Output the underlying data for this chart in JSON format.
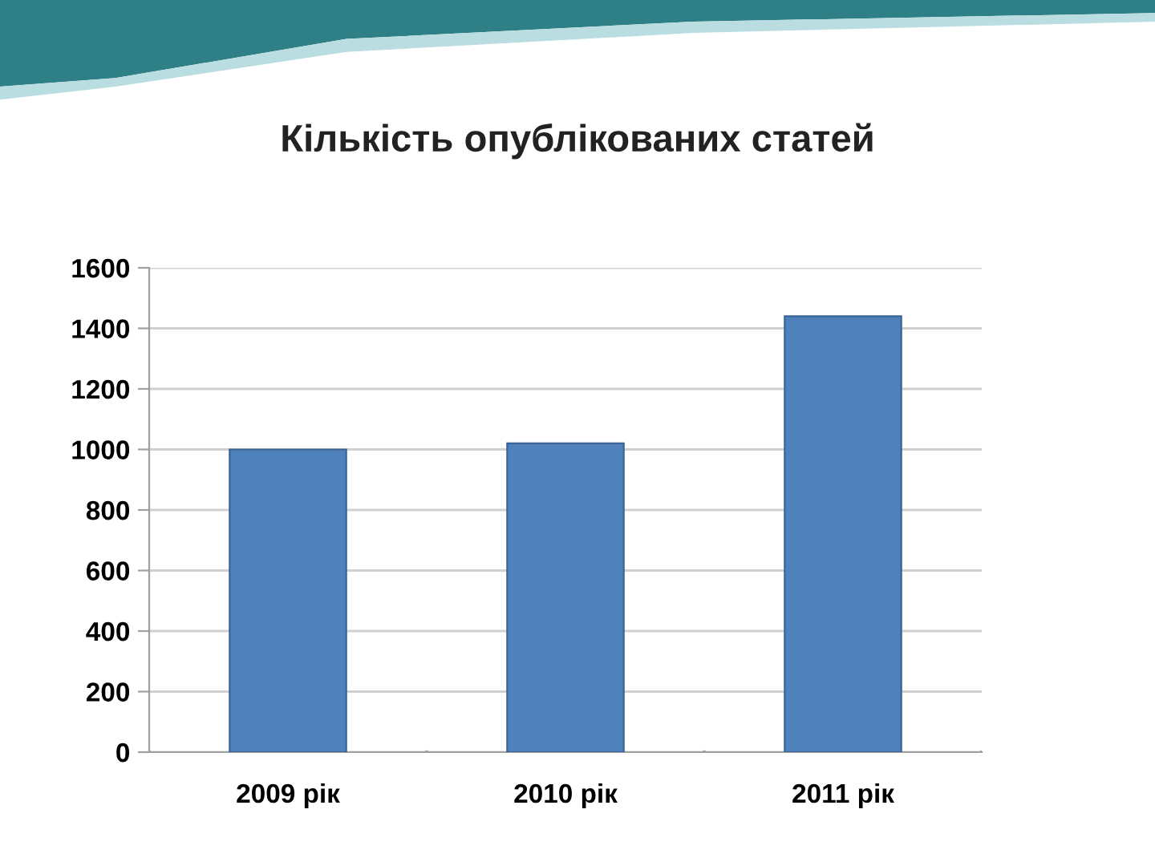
{
  "chart_data": {
    "type": "bar",
    "title": "Кількість опублікованих статей",
    "categories": [
      "2009 рік",
      "2010 рік",
      "2011 рік"
    ],
    "values": [
      1000,
      1020,
      1440
    ],
    "color": "#4f81bd",
    "ylim": [
      0,
      1600
    ],
    "yticks": [
      0,
      200,
      400,
      600,
      800,
      1000,
      1200,
      1400,
      1600
    ],
    "grid": "y",
    "legend": false
  }
}
